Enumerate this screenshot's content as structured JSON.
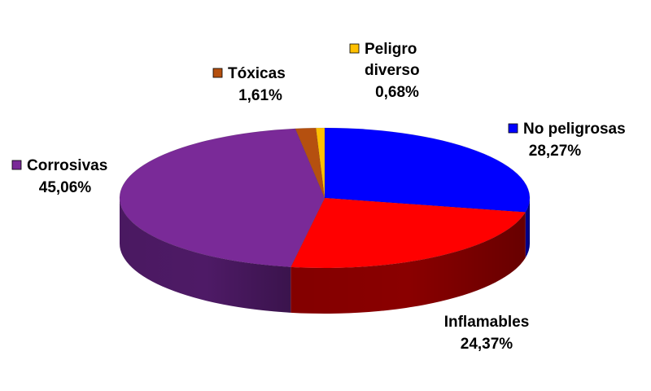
{
  "chart_data": {
    "type": "pie",
    "title": "",
    "legend": "none",
    "slices": [
      {
        "label": "No peligrosas",
        "value_text": "28,27%",
        "value": 28.27,
        "color": "#0000ff",
        "side_color": "#00008a"
      },
      {
        "label": "Inflamables",
        "value_text": "24,37%",
        "value": 24.37,
        "color": "#ff0000",
        "side_color": "#8a0000"
      },
      {
        "label": "Corrosivas",
        "value_text": "45,06%",
        "value": 45.06,
        "color": "#7a2a98",
        "side_color": "#4e1a66"
      },
      {
        "label": "Tóxicas",
        "value_text": "1,61%",
        "value": 1.61,
        "color": "#b5500f",
        "side_color": "#6e3008"
      },
      {
        "label": "Peligro diverso",
        "label_lines": [
          "Peligro",
          "diverso"
        ],
        "value_text": "0,68%",
        "value": 0.68,
        "color": "#ffc000",
        "side_color": "#a07800"
      }
    ]
  }
}
